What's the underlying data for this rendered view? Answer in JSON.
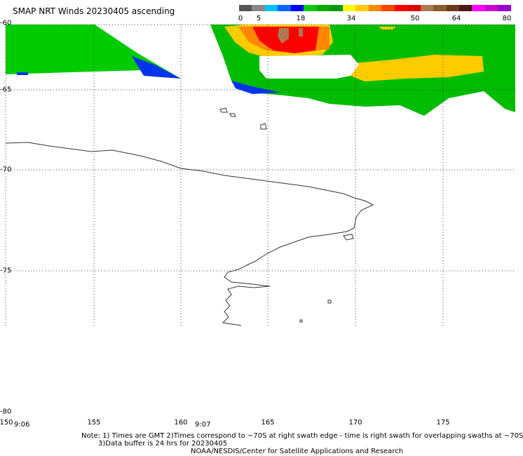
{
  "title": "SMAP NRT Winds 20230405 ascending",
  "legend": {
    "ticks": [
      "0",
      "5",
      "18",
      "34",
      "50",
      "64",
      "80"
    ],
    "colors": [
      "#555555",
      "#888888",
      "#00bfff",
      "#0066ff",
      "#0000ee",
      "#00cc00",
      "#00aa00",
      "#009900",
      "#ffff00",
      "#ffcc00",
      "#ff8800",
      "#ff4400",
      "#ff0000",
      "#dd0000",
      "#b07850",
      "#8b5a2b",
      "#6b3a1b",
      "#4a1a10",
      "#ff00ff",
      "#cc00cc",
      "#9900cc"
    ]
  },
  "axes": {
    "lat_labels": [
      "-60",
      "-65",
      "-70",
      "-75",
      "-80"
    ],
    "lon_labels": [
      "150",
      "155",
      "160",
      "165",
      "170",
      "175"
    ]
  },
  "times": [
    "9:06",
    "9:07"
  ],
  "notes": {
    "line1": "Note: 1) Times are GMT 2)Times correspond to ~70S at right swath edge - time is right swath for overlapping swaths at ~70S",
    "line2": "3)Data buffer is 24 hrs for 20230405",
    "line3": "NOAA/NESDIS/Center for Satellite Applications and Research"
  }
}
